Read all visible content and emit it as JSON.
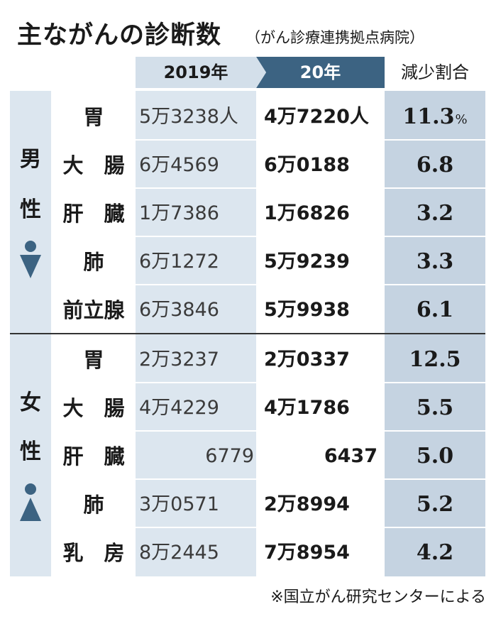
{
  "title": "主ながんの診断数",
  "subtitle": "（がん診療連携拠点病院）",
  "headers": {
    "y2019": "2019年",
    "y2020": "20年",
    "rate": "減少割合"
  },
  "male": {
    "label_1": "男",
    "label_2": "性",
    "icon": "male-figure-icon",
    "rows": [
      {
        "site": "胃",
        "y2019": "5万3238人",
        "y2020": "4万7220人",
        "rate": "11.3",
        "unit": "%"
      },
      {
        "site": "大　腸",
        "y2019": "6万4569",
        "y2020": "6万0188",
        "rate": "6.8"
      },
      {
        "site": "肝　臓",
        "y2019": "1万7386",
        "y2020": "1万6826",
        "rate": "3.2"
      },
      {
        "site": "肺",
        "y2019": "6万1272",
        "y2020": "5万9239",
        "rate": "3.3"
      },
      {
        "site": "前立腺",
        "y2019": "6万3846",
        "y2020": "5万9938",
        "rate": "6.1"
      }
    ]
  },
  "female": {
    "label_1": "女",
    "label_2": "性",
    "icon": "female-figure-icon",
    "rows": [
      {
        "site": "胃",
        "y2019": "2万3237",
        "y2020": "2万0337",
        "rate": "12.5"
      },
      {
        "site": "大　腸",
        "y2019": "4万4229",
        "y2020": "4万1786",
        "rate": "5.5"
      },
      {
        "site": "肝　臓",
        "y2019": "6779",
        "y2020": "6437",
        "rate": "5.0"
      },
      {
        "site": "肺",
        "y2019": "3万0571",
        "y2020": "2万8994",
        "rate": "5.2"
      },
      {
        "site": "乳　房",
        "y2019": "8万2445",
        "y2020": "7万8954",
        "rate": "4.2"
      }
    ]
  },
  "footnote": "※国立がん研究センターによる",
  "colors": {
    "header_2020": "#3c6382",
    "header_2019": "#d3dfea",
    "band_2019": "#dce6ef",
    "band_rate": "#c5d3e1",
    "icon": "#3c6382"
  }
}
